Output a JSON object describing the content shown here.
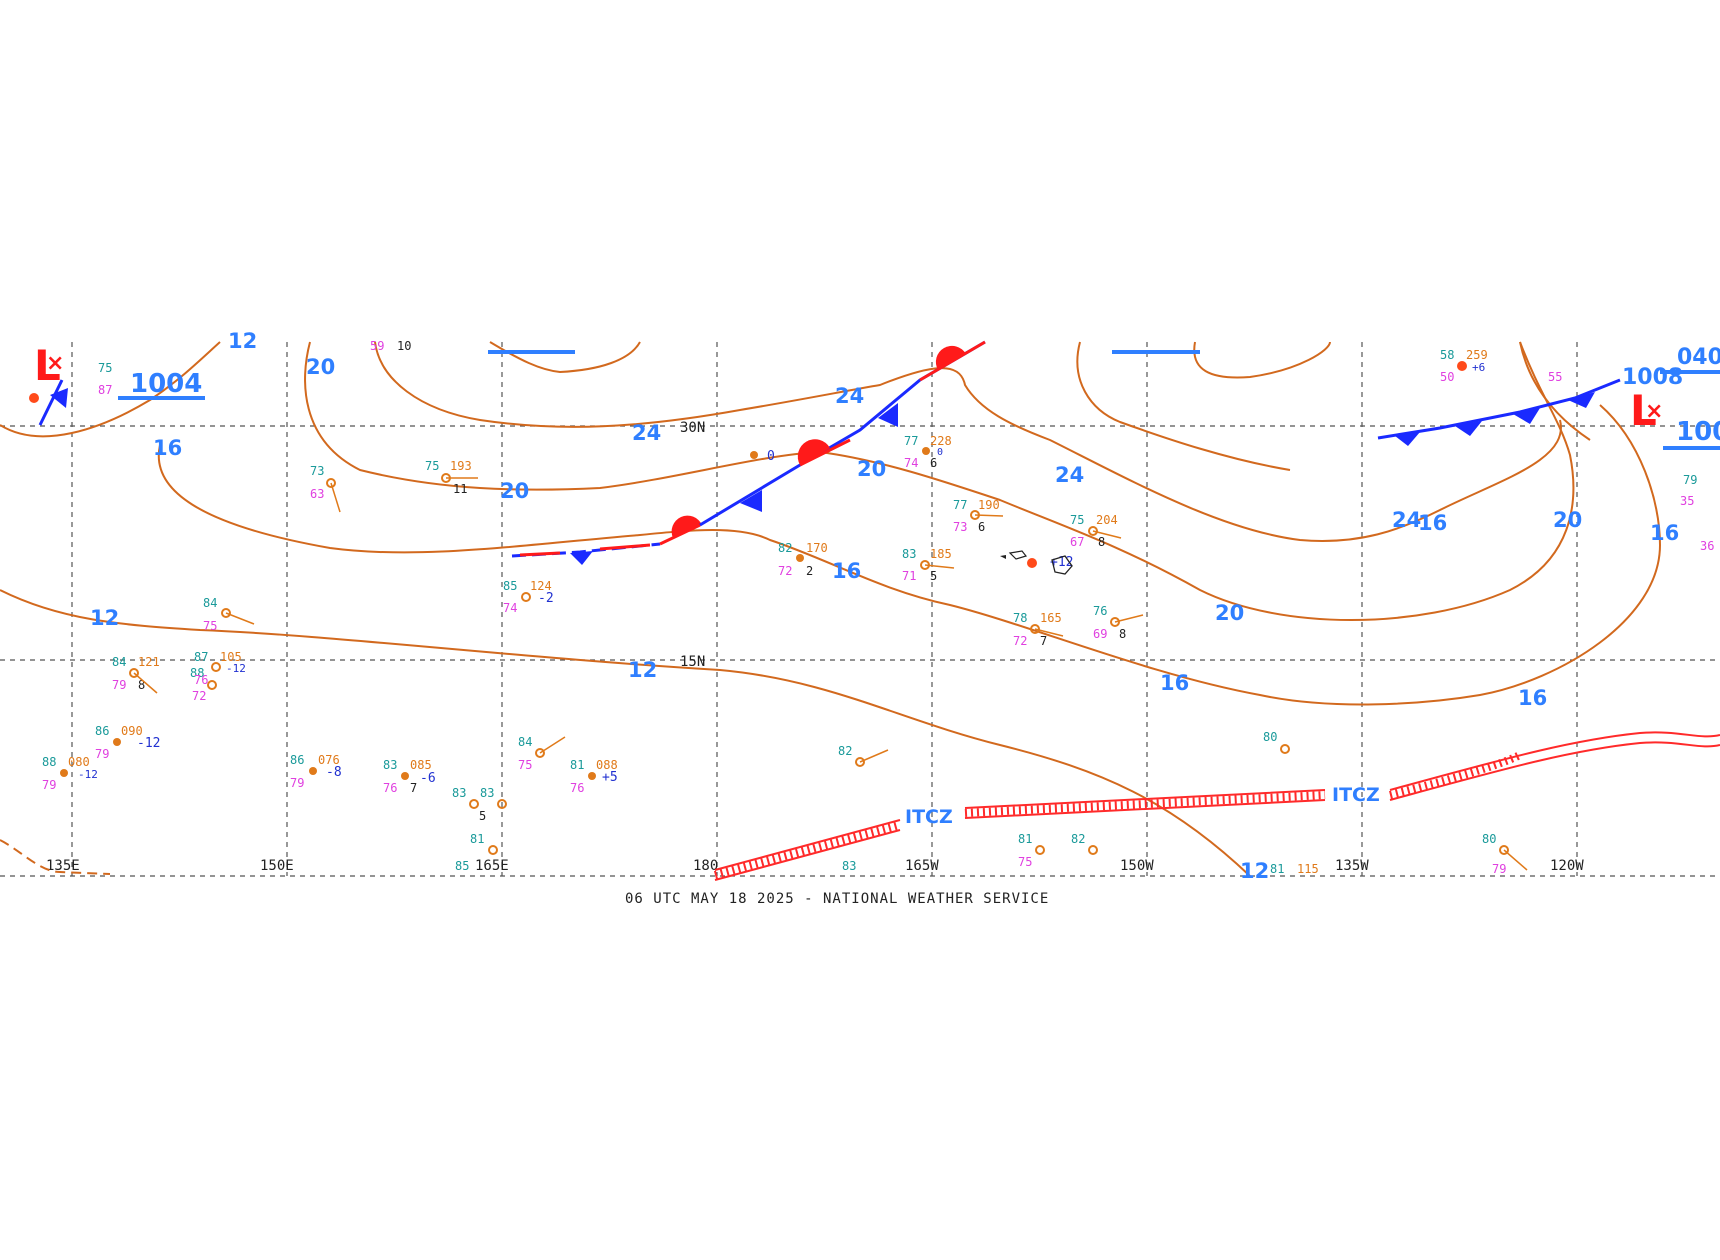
{
  "footer": "06 UTC MAY 18 2025 - NATIONAL WEATHER SERVICE",
  "colors": {
    "isobar": "#d2691e",
    "isobar_label": "#2f7fff",
    "cold_front": "#1a2aff",
    "warm_front": "#ff1a1a",
    "itcz": "#ff2a2a",
    "low": "#ff1a1a"
  },
  "longitudes": [
    "135E",
    "150E",
    "165E",
    "180",
    "165W",
    "150W",
    "135W",
    "120W"
  ],
  "latitudes": [
    "30N",
    "15N"
  ],
  "isobar_labels": [
    "12",
    "20",
    "16",
    "24",
    "24",
    "20",
    "20",
    "16",
    "24",
    "24",
    "20",
    "16",
    "16",
    "12",
    "20",
    "12",
    "16",
    "16",
    "12"
  ],
  "pressure_centers": [
    "1004",
    "1008",
    "100",
    "040"
  ],
  "itcz_labels": [
    "ITCZ",
    "ITCZ"
  ],
  "lows": [
    "L",
    "L"
  ],
  "observations": [
    {
      "t": "59",
      "c": "mag"
    },
    {
      "t": "10",
      "c": "blk"
    },
    {
      "t": "75",
      "c": "teal"
    },
    {
      "t": "193",
      "c": "org"
    },
    {
      "t": "11",
      "c": "blk"
    },
    {
      "t": "73",
      "c": "teal"
    },
    {
      "t": "63",
      "c": "mag"
    },
    {
      "t": "77",
      "c": "teal"
    },
    {
      "t": "228",
      "c": "org"
    },
    {
      "t": "74",
      "c": "mag"
    },
    {
      "t": "6",
      "c": "blk"
    },
    {
      "t": "77",
      "c": "teal"
    },
    {
      "t": "190",
      "c": "org"
    },
    {
      "t": "73",
      "c": "mag"
    },
    {
      "t": "6",
      "c": "blk"
    },
    {
      "t": "82",
      "c": "teal"
    },
    {
      "t": "170",
      "c": "org"
    },
    {
      "t": "72",
      "c": "mag"
    },
    {
      "t": "2",
      "c": "blk"
    },
    {
      "t": "83",
      "c": "teal"
    },
    {
      "t": "185",
      "c": "org"
    },
    {
      "t": "71",
      "c": "mag"
    },
    {
      "t": "5",
      "c": "blk"
    },
    {
      "t": "75",
      "c": "teal"
    },
    {
      "t": "204",
      "c": "org"
    },
    {
      "t": "67",
      "c": "mag"
    },
    {
      "t": "8",
      "c": "blk"
    },
    {
      "t": "85",
      "c": "teal"
    },
    {
      "t": "124",
      "c": "org"
    },
    {
      "t": "74",
      "c": "mag"
    },
    {
      "t": "-2",
      "c": "blue"
    },
    {
      "t": "84",
      "c": "teal"
    },
    {
      "t": "75",
      "c": "mag"
    },
    {
      "t": "78",
      "c": "teal"
    },
    {
      "t": "165",
      "c": "org"
    },
    {
      "t": "72",
      "c": "mag"
    },
    {
      "t": "7",
      "c": "blk"
    },
    {
      "t": "76",
      "c": "teal"
    },
    {
      "t": "69",
      "c": "mag"
    },
    {
      "t": "8",
      "c": "blk"
    },
    {
      "t": "84",
      "c": "teal"
    },
    {
      "t": "121",
      "c": "org"
    },
    {
      "t": "79",
      "c": "mag"
    },
    {
      "t": "8",
      "c": "blk"
    },
    {
      "t": "87",
      "c": "teal"
    },
    {
      "t": "105",
      "c": "org"
    },
    {
      "t": "88",
      "c": "teal"
    },
    {
      "t": "76",
      "c": "mag"
    },
    {
      "t": "72",
      "c": "mag"
    },
    {
      "t": "-12",
      "c": "blue"
    },
    {
      "t": "86",
      "c": "teal"
    },
    {
      "t": "090",
      "c": "org"
    },
    {
      "t": "79",
      "c": "mag"
    },
    {
      "t": "-12",
      "c": "blue"
    },
    {
      "t": "88",
      "c": "teal"
    },
    {
      "t": "080",
      "c": "org"
    },
    {
      "t": "79",
      "c": "mag"
    },
    {
      "t": "-12",
      "c": "blue"
    },
    {
      "t": "86",
      "c": "teal"
    },
    {
      "t": "076",
      "c": "org"
    },
    {
      "t": "79",
      "c": "mag"
    },
    {
      "t": "-8",
      "c": "blue"
    },
    {
      "t": "83",
      "c": "teal"
    },
    {
      "t": "085",
      "c": "org"
    },
    {
      "t": "76",
      "c": "mag"
    },
    {
      "t": "7",
      "c": "blk"
    },
    {
      "t": "-6",
      "c": "blue"
    },
    {
      "t": "83",
      "c": "teal"
    },
    {
      "t": "83",
      "c": "teal"
    },
    {
      "t": "5",
      "c": "blk"
    },
    {
      "t": "84",
      "c": "teal"
    },
    {
      "t": "75",
      "c": "mag"
    },
    {
      "t": "81",
      "c": "teal"
    },
    {
      "t": "088",
      "c": "org"
    },
    {
      "t": "76",
      "c": "mag"
    },
    {
      "t": "+5",
      "c": "blue"
    },
    {
      "t": "82",
      "c": "teal"
    },
    {
      "t": "80",
      "c": "teal"
    },
    {
      "t": "81",
      "c": "teal"
    },
    {
      "t": "75",
      "c": "mag"
    },
    {
      "t": "82",
      "c": "teal"
    },
    {
      "t": "83",
      "c": "teal"
    },
    {
      "t": "81",
      "c": "teal"
    },
    {
      "t": "85",
      "c": "teal"
    },
    {
      "t": "80",
      "c": "teal"
    },
    {
      "t": "79",
      "c": "mag"
    },
    {
      "t": "81",
      "c": "teal"
    },
    {
      "t": "115",
      "c": "org"
    },
    {
      "t": "58",
      "c": "teal"
    },
    {
      "t": "259",
      "c": "org"
    },
    {
      "t": "50",
      "c": "mag"
    },
    {
      "t": "+6",
      "c": "blue"
    },
    {
      "t": "55",
      "c": "mag"
    },
    {
      "t": "79",
      "c": "teal"
    },
    {
      "t": "35",
      "c": "mag"
    },
    {
      "t": "36",
      "c": "mag"
    },
    {
      "t": "+12",
      "c": "blue"
    },
    {
      "t": "0",
      "c": "blue"
    },
    {
      "t": "0",
      "c": "blue"
    },
    {
      "t": "75",
      "c": "teal"
    },
    {
      "t": "87",
      "c": "mag"
    }
  ]
}
